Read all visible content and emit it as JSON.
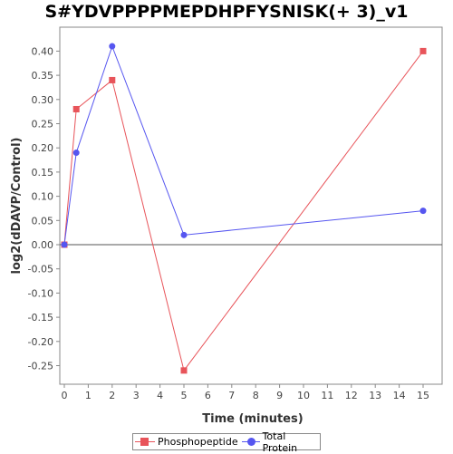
{
  "chart_data": {
    "type": "line",
    "title": "S#YDVPPPPMEPDHPFYSNISK(+ 3)_v1",
    "xlabel": "Time (minutes)",
    "ylabel": "log2(dDAVP/Control)",
    "xlim": [
      0,
      16
    ],
    "ylim": [
      -0.3,
      0.42
    ],
    "x_ticks": [
      0,
      1,
      2,
      3,
      4,
      5,
      6,
      7,
      8,
      9,
      10,
      11,
      12,
      13,
      14,
      15
    ],
    "y_ticks": [
      -0.25,
      -0.2,
      -0.15,
      -0.1,
      -0.05,
      0.0,
      0.05,
      0.1,
      0.15,
      0.2,
      0.25,
      0.3,
      0.35,
      0.4
    ],
    "y_tick_labels": [
      "-0.25",
      "-0.20",
      "-0.15",
      "-0.10",
      "-0.05",
      "0.00",
      "0.05",
      "0.10",
      "0.15",
      "0.20",
      "0.25",
      "0.30",
      "0.35",
      "0.40"
    ],
    "series": [
      {
        "name": "Phosphopeptide",
        "color": "#e8545a",
        "marker": "square",
        "x": [
          0,
          0.5,
          2,
          5,
          15
        ],
        "y": [
          0.0,
          0.28,
          0.34,
          -0.26,
          0.4
        ]
      },
      {
        "name": "Total Protein",
        "color": "#5656f0",
        "marker": "circle",
        "x": [
          0,
          0.5,
          2,
          5,
          15
        ],
        "y": [
          0.0,
          0.19,
          0.41,
          0.02,
          0.07
        ]
      }
    ],
    "legend_position": "bottom",
    "grid": false,
    "zero_line": true
  }
}
